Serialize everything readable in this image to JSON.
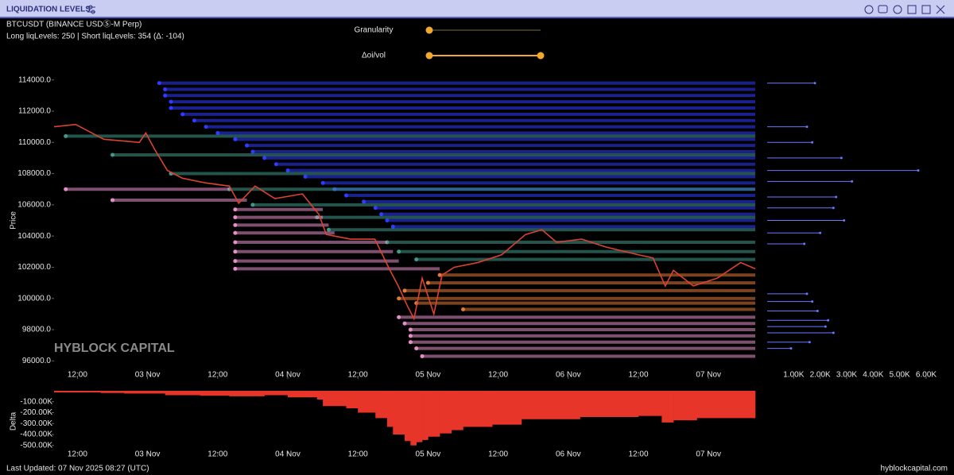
{
  "header": {
    "title": "LIQUIDATION LEVELS",
    "symbol": "BTCUSDT (BINANCE USDⓈ-M Perp)",
    "info": "Long liqLevels: 250 | Short liqLevels: 354 (Δ: -104)"
  },
  "controls": {
    "granularity": "Granularity",
    "oi_vol": "Δoi/vol"
  },
  "watermark": "HYBLOCK CAPITAL",
  "footer": {
    "updated": "Last Updated: 07 Nov 2025 08:27 (UTC)",
    "site": "hyblockcapital.com"
  },
  "chart_data": [
    {
      "type": "line",
      "ylabel": "Price",
      "color": "#d9432f",
      "x": [
        0,
        3.7,
        8.5,
        14.6,
        15.7,
        17.3,
        19.4,
        22,
        26,
        30,
        31.6,
        34.4,
        37.8,
        42.5,
        45.3,
        46.6,
        50.7,
        54.9,
        57.5,
        58.9,
        60.5,
        61.6,
        63,
        65,
        66.4,
        68.5,
        72.5,
        76.6,
        80.7,
        83.5,
        86,
        90.3,
        94.4,
        100,
        102.5,
        104.6,
        106,
        109.4,
        113.5,
        117.5,
        120
      ],
      "values": [
        111000,
        111150,
        110200,
        110000,
        110600,
        109500,
        108200,
        107700,
        107400,
        107200,
        106100,
        107200,
        106400,
        106700,
        105400,
        104100,
        103800,
        103800,
        101800,
        100800,
        99500,
        98700,
        101300,
        99000,
        101500,
        102000,
        102300,
        102800,
        104100,
        104400,
        103600,
        103800,
        103300,
        102800,
        102600,
        100800,
        101800,
        100800,
        101300,
        102300,
        101900
      ],
      "levels": [
        {
          "color": "#2f3cff",
          "x": [
            18,
            19,
            19,
            20,
            20,
            22,
            24,
            26,
            28,
            31,
            33,
            34,
            36,
            38,
            40,
            43,
            46,
            48,
            50,
            53,
            55,
            56,
            57,
            58
          ],
          "values": [
            113800,
            113400,
            113000,
            112600,
            112200,
            111800,
            111400,
            111000,
            110600,
            110200,
            109800,
            109400,
            109000,
            108600,
            108200,
            107800,
            107400,
            107000,
            106600,
            106200,
            105800,
            105400,
            105000,
            104600
          ]
        },
        {
          "color": "#3f9a8a",
          "x": [
            2,
            10,
            20,
            30,
            34,
            45,
            47,
            57,
            59,
            62
          ],
          "values": [
            110400,
            109200,
            108000,
            107000,
            106000,
            105200,
            104400,
            103600,
            103000,
            102500
          ]
        },
        {
          "color": "#e07a3a",
          "x": [
            66,
            64,
            60,
            59,
            62,
            70
          ],
          "values": [
            101500,
            101000,
            100500,
            100000,
            99700,
            99300
          ]
        },
        {
          "color": "#e58fc8",
          "x": [
            2,
            10,
            31,
            31,
            31,
            31,
            31,
            31,
            31,
            31,
            59,
            60,
            61,
            61,
            61,
            62,
            63
          ],
          "x_end": [
            30,
            33,
            46,
            46,
            47,
            48,
            57,
            58,
            59,
            66,
            120,
            120,
            120,
            120,
            120,
            120,
            120
          ],
          "values": [
            107000,
            106300,
            105700,
            105200,
            104700,
            104200,
            103600,
            103000,
            102400,
            101900,
            98800,
            98400,
            98000,
            97600,
            97200,
            96800,
            96300
          ]
        }
      ],
      "xlim": [
        0,
        120
      ],
      "ylim": [
        95000,
        115000
      ],
      "xticks": [
        {
          "value": 4,
          "label": "12:00"
        },
        {
          "value": 16,
          "label": "03 Nov"
        },
        {
          "value": 28,
          "label": "12:00"
        },
        {
          "value": 40,
          "label": "04 Nov"
        },
        {
          "value": 52,
          "label": "12:00"
        },
        {
          "value": 64,
          "label": "05 Nov"
        },
        {
          "value": 76,
          "label": "12:00"
        },
        {
          "value": 88,
          "label": "06 Nov"
        },
        {
          "value": 100,
          "label": "12:00"
        },
        {
          "value": 112,
          "label": "07 Nov"
        }
      ],
      "yticks": [
        {
          "value": 96000,
          "label": "96000.0"
        },
        {
          "value": 98000,
          "label": "98000.0"
        },
        {
          "value": 100000,
          "label": "100000.0"
        },
        {
          "value": 102000,
          "label": "102000.0"
        },
        {
          "value": 104000,
          "label": "104000.0"
        },
        {
          "value": 106000,
          "label": "106000.0"
        },
        {
          "value": 108000,
          "label": "108000.0"
        },
        {
          "value": 110000,
          "label": "110000.0"
        },
        {
          "value": 112000,
          "label": "112000.0"
        },
        {
          "value": 114000,
          "label": "114000.0"
        }
      ]
    },
    {
      "type": "bar",
      "color": "#6a78ff",
      "y": [
        113800,
        111000,
        110000,
        109000,
        108200,
        107500,
        106500,
        105800,
        105000,
        104200,
        103500,
        100300,
        99800,
        99200,
        98600,
        98200,
        97800,
        97200,
        96800
      ],
      "values": [
        1800,
        1500,
        1700,
        2800,
        5700,
        3200,
        2600,
        2500,
        2900,
        2000,
        1400,
        1500,
        1700,
        1900,
        2300,
        2200,
        2500,
        1600,
        900
      ],
      "xlim": [
        0,
        6000
      ],
      "ylim": [
        95000,
        115000
      ],
      "xticks": [
        {
          "value": 1000,
          "label": "1.00K"
        },
        {
          "value": 2000,
          "label": "2.00K"
        },
        {
          "value": 3000,
          "label": "3.00K"
        },
        {
          "value": 4000,
          "label": "4.00K"
        },
        {
          "value": 5000,
          "label": "5.00K"
        },
        {
          "value": 6000,
          "label": "6.00K"
        }
      ]
    },
    {
      "type": "bar",
      "ylabel": "Delta",
      "color": "#e8352a",
      "x": [
        0,
        8,
        12,
        19,
        25,
        30,
        36,
        40,
        45,
        46,
        50,
        52,
        55,
        57,
        58,
        60,
        61,
        62,
        63,
        64,
        66,
        68,
        70,
        75,
        80,
        90,
        100,
        104,
        106,
        110
      ],
      "values": [
        -15000,
        -20000,
        -25000,
        -40000,
        -45000,
        -50000,
        -40000,
        -60000,
        -80000,
        -140000,
        -160000,
        -200000,
        -250000,
        -330000,
        -400000,
        -460000,
        -500000,
        -470000,
        -450000,
        -420000,
        -390000,
        -360000,
        -330000,
        -310000,
        -260000,
        -240000,
        -230000,
        -290000,
        -270000,
        -250000
      ],
      "xlim": [
        0,
        120
      ],
      "ylim": [
        -560000,
        0
      ],
      "xticks": [
        {
          "value": 4,
          "label": "12:00"
        },
        {
          "value": 16,
          "label": "03 Nov"
        },
        {
          "value": 28,
          "label": "12:00"
        },
        {
          "value": 40,
          "label": "04 Nov"
        },
        {
          "value": 52,
          "label": "12:00"
        },
        {
          "value": 64,
          "label": "05 Nov"
        },
        {
          "value": 76,
          "label": "12:00"
        },
        {
          "value": 88,
          "label": "06 Nov"
        },
        {
          "value": 100,
          "label": "12:00"
        },
        {
          "value": 112,
          "label": "07 Nov"
        }
      ],
      "yticks": [
        {
          "value": -100000,
          "label": "-100.00K"
        },
        {
          "value": -200000,
          "label": "-200.00K"
        },
        {
          "value": -300000,
          "label": "-300.00K"
        },
        {
          "value": -400000,
          "label": "-400.00K"
        },
        {
          "value": -500000,
          "label": "-500.00K"
        }
      ]
    }
  ]
}
